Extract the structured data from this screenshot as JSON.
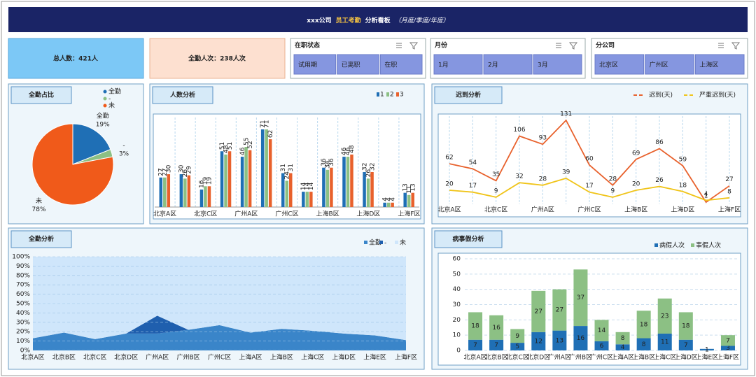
{
  "header": {
    "parts": [
      "xxx公司",
      "员工考勤",
      "分析看板",
      "（月度/季度/年度）"
    ]
  },
  "kpis": [
    "总人数：421人",
    "全勤人次：238人次"
  ],
  "slicers": [
    {
      "title": "在职状态",
      "items": [
        "试用期",
        "已离职",
        "在职"
      ]
    },
    {
      "title": "月份",
      "items": [
        "1月",
        "2月",
        "3月"
      ]
    },
    {
      "title": "分公司",
      "items": [
        "北京区",
        "广州区",
        "上海区"
      ]
    }
  ],
  "chart_data": [
    {
      "type": "pie",
      "title": "全勤占比",
      "categories": [
        "全勤",
        "-",
        "未"
      ],
      "values": [
        19,
        3,
        78
      ],
      "value_labels": [
        "19%",
        "3%",
        "78%"
      ],
      "colors": [
        "#1f6fb5",
        "#8cc084",
        "#f05a1a"
      ],
      "legend": "top-right"
    },
    {
      "type": "grouped_bar",
      "title": "人数分析",
      "categories": [
        "北京A区",
        null,
        "北京C区",
        null,
        "广州A区",
        null,
        "广州C区",
        null,
        "上海B区",
        null,
        "上海D区",
        null,
        "上海F区"
      ],
      "series": [
        {
          "name": "1",
          "color": "#1f6fb5",
          "values": [
            27,
            30,
            16,
            51,
            46,
            71,
            31,
            14,
            36,
            46,
            32,
            4,
            13
          ]
        },
        {
          "name": "2",
          "color": "#8cc084",
          "values": [
            27,
            26,
            19,
            48,
            55,
            71,
            24,
            14,
            34,
            46,
            26,
            4,
            11
          ]
        },
        {
          "name": "3",
          "color": "#e8612c",
          "values": [
            30,
            29,
            19,
            51,
            52,
            62,
            31,
            14,
            36,
            48,
            32,
            4,
            13
          ]
        }
      ],
      "legend": "top-right"
    },
    {
      "type": "line",
      "title": "迟到分析",
      "categories": [
        "北京A区",
        null,
        "北京C区",
        null,
        "广州A区",
        null,
        "广州C区",
        null,
        "上海B区",
        null,
        "上海D区",
        null,
        "上海F区"
      ],
      "series": [
        {
          "name": "迟到(天)",
          "color": "#e8612c",
          "values": [
            62,
            54,
            35,
            106,
            93,
            131,
            60,
            28,
            69,
            86,
            59,
            1,
            27
          ]
        },
        {
          "name": "严重迟到(天)",
          "color": "#f0c419",
          "values": [
            20,
            17,
            9,
            32,
            28,
            39,
            17,
            9,
            20,
            26,
            18,
            4,
            8
          ]
        }
      ],
      "legend": "top-right"
    },
    {
      "type": "stacked_area",
      "title": "全勤分析",
      "categories": [
        "北京A区",
        "北京B区",
        "北京C区",
        "北京D区",
        "广州A区",
        "广州B区",
        "广州C区",
        "上海A区",
        "上海B区",
        "上海C区",
        "上海D区",
        "上海E区",
        "上海F区"
      ],
      "series": [
        {
          "name": "全勤",
          "color": "#3a85c9",
          "values": [
            13,
            19,
            12,
            18,
            18,
            22,
            27,
            19,
            23,
            21,
            18,
            16,
            11
          ]
        },
        {
          "name": "-",
          "color": "#1f5fae",
          "values": [
            0,
            0,
            0,
            0,
            19,
            0,
            0,
            0,
            0,
            0,
            0,
            0,
            0
          ]
        },
        {
          "name": "未",
          "color": "#cfe6fb",
          "values": [
            87,
            81,
            88,
            82,
            63,
            78,
            73,
            81,
            77,
            79,
            82,
            84,
            89
          ]
        }
      ],
      "ylim": [
        0,
        100
      ],
      "yticks": [
        {
          "value": 0,
          "label": "0%"
        },
        {
          "value": 10,
          "label": "10%"
        },
        {
          "value": 20,
          "label": "20%"
        },
        {
          "value": 30,
          "label": "30%"
        },
        {
          "value": 40,
          "label": "40%"
        },
        {
          "value": 50,
          "label": "50%"
        },
        {
          "value": 60,
          "label": "60%"
        },
        {
          "value": 70,
          "label": "70%"
        },
        {
          "value": 80,
          "label": "80%"
        },
        {
          "value": 90,
          "label": "90%"
        },
        {
          "value": 100,
          "label": "100%"
        }
      ],
      "grid": true,
      "legend": "top-right"
    },
    {
      "type": "stacked_bar",
      "title": "病事假分析",
      "categories": [
        "北京A区",
        "北京B区",
        "北京C区",
        "北京D区",
        "广州A区",
        "广州B区",
        "广州C区",
        "上海A区",
        "上海B区",
        "上海C区",
        "上海D区",
        "上海E区",
        "上海F区"
      ],
      "series": [
        {
          "name": "病假人次",
          "color": "#1f6fb5",
          "values": [
            7,
            7,
            5,
            12,
            13,
            16,
            6,
            4,
            8,
            11,
            7,
            1,
            3
          ]
        },
        {
          "name": "事假人次",
          "color": "#8cc084",
          "values": [
            18,
            16,
            9,
            27,
            27,
            37,
            14,
            8,
            18,
            23,
            18,
            null,
            7
          ]
        }
      ],
      "ylim": [
        0,
        60
      ],
      "yticks": [
        0,
        10,
        20,
        30,
        40,
        50,
        60
      ],
      "grid": true,
      "legend": "top-right"
    }
  ]
}
